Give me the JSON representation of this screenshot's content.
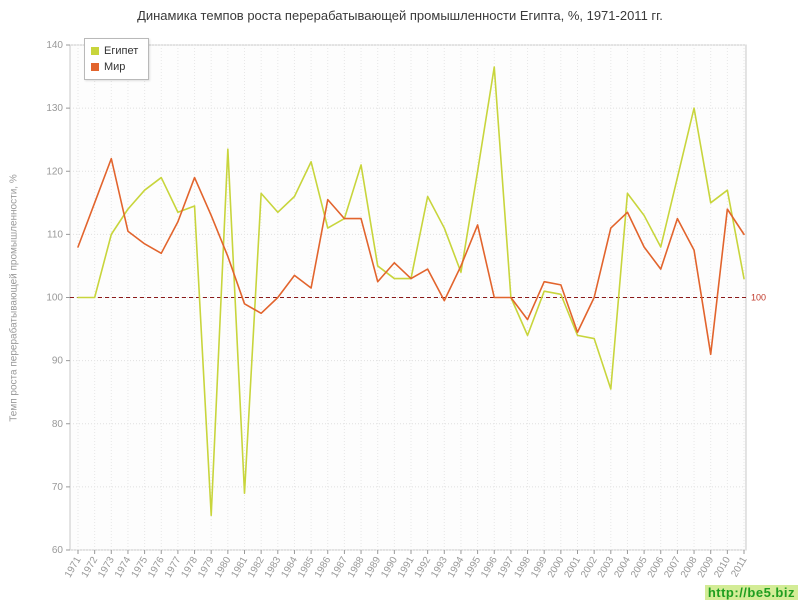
{
  "title": "Динамика темпов роста перерабатывающей промышленности Египта, %, 1971-2011 гг.",
  "ylabel": "Темп роста перерабатывающей промышленности, %",
  "watermark": "http://be5.biz",
  "reference_line": {
    "value": 100,
    "label": "100"
  },
  "colors": {
    "egypt": "#c8d53c",
    "world": "#e2642d",
    "grid": "#e0e0e0",
    "axis_text": "#999999",
    "reference": "#8b1a1a"
  },
  "chart_data": {
    "type": "line",
    "title": "Динамика темпов роста перерабатывающей промышленности Египта, %, 1971-2011 гг.",
    "xlabel": "",
    "ylabel": "Темп роста перерабатывающей промышленности, %",
    "ylim": [
      60,
      140
    ],
    "yticks": [
      60,
      70,
      80,
      90,
      100,
      110,
      120,
      130,
      140
    ],
    "grid": true,
    "legend_position": "top-left",
    "x": [
      1971,
      1972,
      1973,
      1974,
      1975,
      1976,
      1977,
      1978,
      1979,
      1980,
      1981,
      1982,
      1983,
      1984,
      1985,
      1986,
      1987,
      1988,
      1989,
      1990,
      1991,
      1992,
      1993,
      1994,
      1995,
      1996,
      1997,
      1998,
      1999,
      2000,
      2001,
      2002,
      2003,
      2004,
      2005,
      2006,
      2007,
      2008,
      2009,
      2010,
      2011
    ],
    "series": [
      {
        "id": "egypt",
        "name": "Египет",
        "color": "#c8d53c",
        "values": [
          100,
          100,
          110,
          114,
          117,
          119,
          113.5,
          114.5,
          65.5,
          123.5,
          69,
          116.5,
          113.5,
          116,
          121.5,
          111,
          112.5,
          121,
          105,
          103,
          103,
          116,
          111,
          104,
          120,
          136.5,
          100,
          94,
          101,
          100.5,
          94,
          93.5,
          85.5,
          116.5,
          113,
          108,
          119,
          130,
          115,
          117,
          103
        ]
      },
      {
        "id": "world",
        "name": "Мир",
        "color": "#e2642d",
        "values": [
          108,
          115,
          122,
          110.5,
          108.5,
          107,
          112,
          119,
          113,
          106.5,
          99,
          97.5,
          100,
          103.5,
          101.5,
          115.5,
          112.5,
          112.5,
          102.5,
          105.5,
          103,
          104.5,
          99.5,
          105,
          111.5,
          100,
          100,
          96.5,
          102.5,
          102,
          94.5,
          100,
          111,
          113.5,
          108,
          104.5,
          112.5,
          107.5,
          91,
          114,
          110
        ]
      }
    ]
  }
}
